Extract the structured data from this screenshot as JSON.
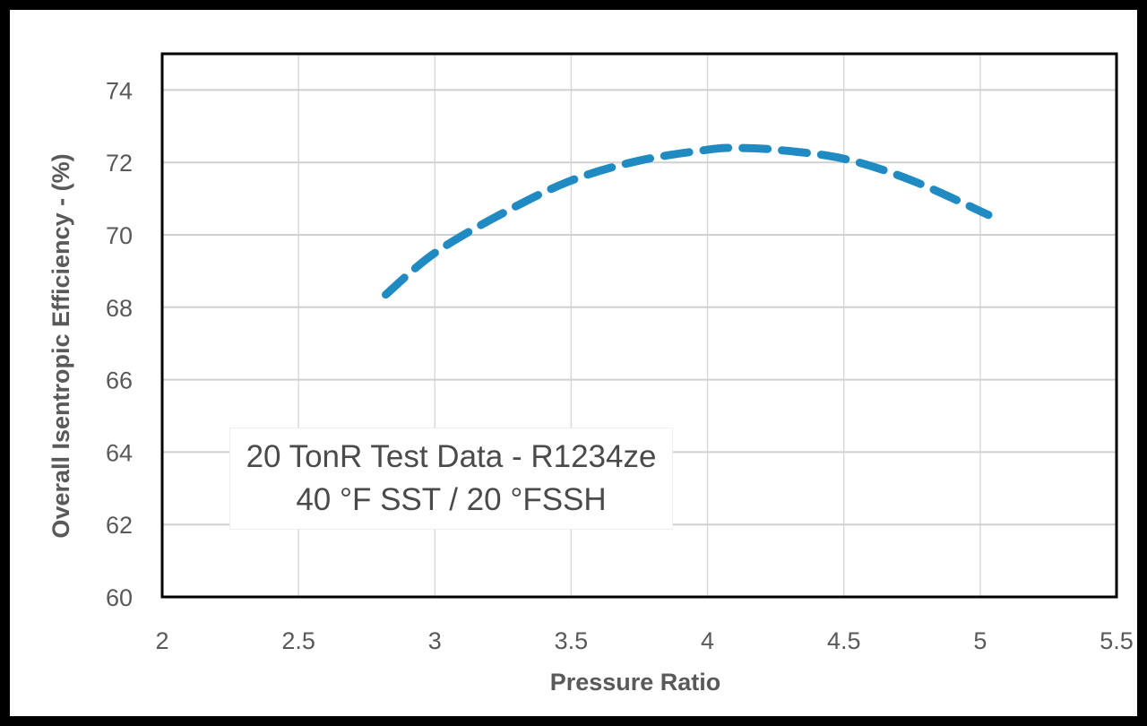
{
  "chart_data": {
    "type": "line",
    "title": "",
    "xlabel": "Pressure Ratio",
    "ylabel": "Overall Isentropic Efficiency - (%)",
    "xlim": [
      2,
      5.5
    ],
    "ylim": [
      60,
      75
    ],
    "xticks": [
      "2",
      "2.5",
      "3",
      "3.5",
      "4",
      "4.5",
      "5",
      "5.5"
    ],
    "yticks": [
      "60",
      "62",
      "64",
      "66",
      "68",
      "70",
      "72",
      "74"
    ],
    "grid": true,
    "legend": "none",
    "annotation": [
      "20 TonR Test Data - R1234ze",
      "40 °F SST / 20 °FSSH"
    ],
    "series": [
      {
        "line_style": "dashed",
        "color": "#1f8bc2",
        "x": [
          2.82,
          3.0,
          3.25,
          3.5,
          3.75,
          4.0,
          4.1,
          4.25,
          4.5,
          4.75,
          5.03
        ],
        "y": [
          68.35,
          69.5,
          70.6,
          71.5,
          72.05,
          72.35,
          72.4,
          72.35,
          72.1,
          71.5,
          70.55
        ]
      }
    ]
  }
}
